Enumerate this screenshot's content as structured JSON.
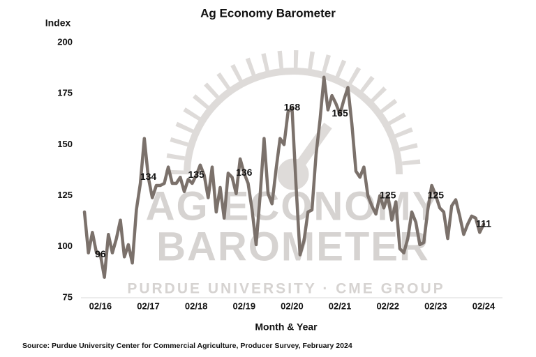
{
  "chart_data": {
    "type": "line",
    "title": "Ag Economy Barometer",
    "y_label": "Index",
    "x_label": "Month & Year",
    "source": "Source: Purdue University Center for Commercial Agriculture, Producer Survey, February 2024",
    "watermark": [
      "AG ECONOMY",
      "BAROMETER",
      "PURDUE UNIVERSITY  ·  CME GROUP"
    ],
    "ylim": [
      75,
      200
    ],
    "yticks": [
      75,
      100,
      125,
      150,
      175,
      200
    ],
    "grid": false,
    "categories": [
      null,
      null,
      null,
      null,
      "02/16",
      null,
      null,
      null,
      null,
      null,
      null,
      null,
      null,
      null,
      null,
      null,
      "02/17",
      null,
      null,
      null,
      null,
      null,
      null,
      null,
      null,
      null,
      null,
      null,
      "02/18",
      null,
      null,
      null,
      null,
      null,
      null,
      null,
      null,
      null,
      null,
      null,
      "02/19",
      null,
      null,
      null,
      null,
      null,
      null,
      null,
      null,
      null,
      null,
      null,
      "02/20",
      null,
      null,
      null,
      null,
      null,
      null,
      null,
      null,
      null,
      null,
      null,
      "02/21",
      null,
      null,
      null,
      null,
      null,
      null,
      null,
      null,
      null,
      null,
      null,
      "02/22",
      null,
      null,
      null,
      null,
      null,
      null,
      null,
      null,
      null,
      null,
      null,
      "02/23",
      null,
      null,
      null,
      null,
      null,
      null,
      null,
      null,
      null,
      null,
      null,
      "02/24"
    ],
    "series": [
      {
        "name": "Ag Economy Barometer",
        "color": "#7b716b",
        "values": [
          117,
          97,
          107,
          97,
          96,
          85,
          106,
          97,
          104,
          113,
          95,
          101,
          92,
          118,
          131,
          153,
          134,
          124,
          130,
          130,
          131,
          139,
          131,
          131,
          134,
          127,
          133,
          131,
          135,
          140,
          135,
          124,
          139,
          117,
          129,
          114,
          136,
          134,
          126,
          143,
          136,
          131,
          118,
          101,
          125,
          153,
          126,
          121,
          138,
          153,
          150,
          166,
          168,
          130,
          96,
          103,
          117,
          118,
          145,
          162,
          183,
          167,
          174,
          170,
          165,
          172,
          178,
          160,
          137,
          134,
          139,
          125,
          120,
          116,
          125,
          119,
          125,
          113,
          122,
          99,
          97,
          104,
          117,
          112,
          101,
          102,
          118,
          130,
          125,
          119,
          117,
          104,
          120,
          123,
          115,
          106,
          111,
          115,
          114,
          107,
          111
        ],
        "value_labels": [
          null,
          null,
          null,
          null,
          "96",
          null,
          null,
          null,
          null,
          null,
          null,
          null,
          null,
          null,
          null,
          null,
          "134",
          null,
          null,
          null,
          null,
          null,
          null,
          null,
          null,
          null,
          null,
          null,
          "135",
          null,
          null,
          null,
          null,
          null,
          null,
          null,
          null,
          null,
          null,
          null,
          "136",
          null,
          null,
          null,
          null,
          null,
          null,
          null,
          null,
          null,
          null,
          null,
          "168",
          null,
          null,
          null,
          null,
          null,
          null,
          null,
          null,
          null,
          null,
          null,
          "165",
          null,
          null,
          null,
          null,
          null,
          null,
          null,
          null,
          null,
          null,
          null,
          "125",
          null,
          null,
          null,
          null,
          null,
          null,
          null,
          null,
          null,
          null,
          null,
          "125",
          null,
          null,
          null,
          null,
          null,
          null,
          null,
          null,
          null,
          null,
          null,
          "111"
        ]
      }
    ]
  }
}
